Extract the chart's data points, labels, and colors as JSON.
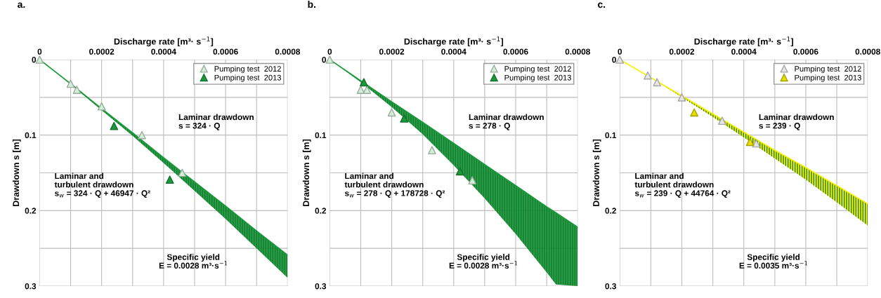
{
  "chart_data": [
    {
      "type": "scatter",
      "title": "a.",
      "xlabel": "Discharge rate [m³· s$^{−1}$]",
      "ylabel": "Drawdown s [m]",
      "xlim": [
        0,
        0.0008
      ],
      "xticks": [
        0,
        0.0002,
        0.0004,
        0.0006,
        0.0008,
        {
          "value": 0.0001,
          "label": null
        },
        {
          "value": 0.0003,
          "label": null
        },
        {
          "value": 0.0005,
          "label": null
        },
        {
          "value": 0.0007,
          "label": null
        }
      ],
      "ylim": [
        0.3,
        0
      ],
      "yticks": [
        0,
        0.1,
        0.2,
        0.3,
        {
          "value": 0.05,
          "label": null
        },
        {
          "value": 0.15,
          "label": null
        },
        {
          "value": 0.25,
          "label": null
        }
      ],
      "grid": true,
      "legend": "top right",
      "series": [
        {
          "type": "line",
          "color": "#1a9a3a",
          "x": [
            0,
            0.0001,
            0.0002,
            0.0003,
            0.0004,
            0.0005,
            0.0006,
            0.0007,
            0.0008
          ],
          "values": [
            0,
            0.032,
            0.065,
            0.097,
            0.13,
            0.162,
            0.194,
            0.227,
            0.259
          ],
          "lower": [
            0,
            0.032,
            0.065,
            0.097,
            0.13,
            0.162,
            0.194,
            0.227,
            0.259
          ],
          "upper": [
            0,
            0.033,
            0.067,
            0.101,
            0.137,
            0.174,
            0.211,
            0.25,
            0.289
          ]
        },
        {
          "name": "Pumping test  2012",
          "color": "#d4efd9",
          "marker": "triangle",
          "x": [
            0,
            0.0001,
            0.00012,
            0.0002,
            0.00033,
            0.00046
          ],
          "values": [
            0,
            0.032,
            0.04,
            0.062,
            0.1,
            0.15
          ]
        },
        {
          "name": "Pumping test  2013",
          "color": "#1a9a3a",
          "marker": "triangle",
          "x": [
            0.00024,
            0.00042
          ],
          "values": [
            0.088,
            0.159
          ]
        }
      ],
      "annotations": [
        "Laminar drawdown\ns = 324 · Q",
        "Laminar and\nturbulent drawdown\ns$_{w}$ = 324 · Q + 46947 · Q²",
        "Specific yield\nE = 0.0028 m³·s$^{−1}$"
      ]
    },
    {
      "type": "scatter",
      "title": "b.",
      "xlabel": "Discharge rate [m³· s$^{−1}$]",
      "ylabel": "Drawdown s [m]",
      "xlim": [
        0,
        0.0008
      ],
      "xticks": [
        0,
        0.0002,
        0.0004,
        0.0006,
        0.0008,
        {
          "value": 0.0001,
          "label": null
        },
        {
          "value": 0.0003,
          "label": null
        },
        {
          "value": 0.0005,
          "label": null
        },
        {
          "value": 0.0007,
          "label": null
        }
      ],
      "ylim": [
        0.3,
        0
      ],
      "yticks": [
        0,
        0.1,
        0.2,
        0.3,
        {
          "value": 0.05,
          "label": null
        },
        {
          "value": 0.15,
          "label": null
        },
        {
          "value": 0.25,
          "label": null
        }
      ],
      "grid": true,
      "legend": "top right",
      "series": [
        {
          "type": "line",
          "color": "#1a9a3a",
          "x": [
            0,
            0.0001,
            0.0002,
            0.0003,
            0.0004,
            0.0005,
            0.0006,
            0.0007,
            0.00073,
            0.0008
          ],
          "values": [
            0,
            0.028,
            0.056,
            0.083,
            0.111,
            0.139,
            0.167,
            0.195,
            0.203,
            0.222
          ],
          "lower": [
            0,
            0.028,
            0.056,
            0.083,
            0.111,
            0.139,
            0.167,
            0.195,
            0.203,
            0.222
          ],
          "upper": [
            0,
            0.03,
            0.063,
            0.099,
            0.14,
            0.184,
            0.231,
            0.282,
            0.298,
            0.3
          ]
        },
        {
          "name": "Pumping test  2012",
          "color": "#d4efd9",
          "marker": "triangle",
          "x": [
            0,
            0.0001,
            0.00012,
            0.0002,
            0.00033,
            0.00046
          ],
          "values": [
            0,
            0.04,
            0.04,
            0.07,
            0.12,
            0.16
          ]
        },
        {
          "name": "Pumping test  2013",
          "color": "#1a9a3a",
          "marker": "triangle",
          "x": [
            0.00011,
            0.00024,
            0.00042
          ],
          "values": [
            0.03,
            0.078,
            0.148
          ]
        }
      ],
      "annotations": [
        "Laminar drawdown\ns = 278 · Q",
        "Laminar and\nturbulent drawdown\ns$_{w}$ = 278 · Q + 178728 · Q²",
        "Specific yield\nE = 0.0028 m³·s$^{−1}$"
      ]
    },
    {
      "type": "scatter",
      "title": "c.",
      "xlabel": "Discharge rate [m³· s$^{−1}$]",
      "ylabel": "Drawdown s [m]",
      "xlim": [
        0,
        0.0008
      ],
      "xticks": [
        0,
        0.0002,
        0.0004,
        0.0006,
        0.0008,
        {
          "value": 0.0001,
          "label": null
        },
        {
          "value": 0.0003,
          "label": null
        },
        {
          "value": 0.0005,
          "label": null
        },
        {
          "value": 0.0007,
          "label": null
        }
      ],
      "ylim": [
        0.3,
        0
      ],
      "yticks": [
        0,
        0.1,
        0.2,
        0.3,
        {
          "value": 0.05,
          "label": null
        },
        {
          "value": 0.15,
          "label": null
        },
        {
          "value": 0.25,
          "label": null
        }
      ],
      "grid": true,
      "legend": "top right",
      "series": [
        {
          "type": "line",
          "color": "#f5f000",
          "x": [
            0,
            0.0001,
            0.0002,
            0.0003,
            0.0004,
            0.0005,
            0.0006,
            0.0007,
            0.0008
          ],
          "values": [
            0,
            0.024,
            0.048,
            0.072,
            0.096,
            0.12,
            0.143,
            0.167,
            0.191
          ],
          "lower": [
            0,
            0.024,
            0.048,
            0.072,
            0.096,
            0.12,
            0.143,
            0.167,
            0.191
          ],
          "upper": [
            0,
            0.024,
            0.05,
            0.076,
            0.103,
            0.131,
            0.159,
            0.189,
            0.22
          ]
        },
        {
          "name": "Pumping test  2012",
          "color": "#e6e6e6",
          "marker": "triangle",
          "x": [
            0,
            9e-05,
            0.00012,
            0.0002,
            0.00033,
            0.00044
          ],
          "values": [
            0,
            0.021,
            0.03,
            0.05,
            0.081,
            0.111
          ]
        },
        {
          "name": "Pumping test  2013",
          "color": "#e8e000",
          "marker": "triangle",
          "x": [
            0.00024,
            0.00042
          ],
          "values": [
            0.07,
            0.109
          ]
        }
      ],
      "annotations": [
        "Laminar drawdown\ns = 239 · Q",
        "Laminar and\nturbulent drawdown\ns$_{w}$ = 239 · Q + 44764 · Q²",
        "Specific yield\nE = 0.0035 m³·s$^{−1}$"
      ]
    }
  ]
}
